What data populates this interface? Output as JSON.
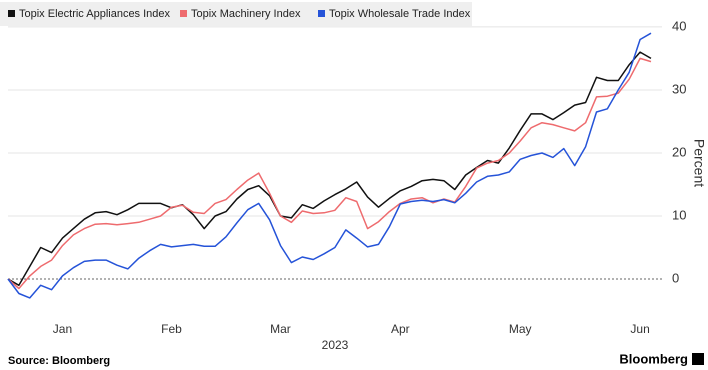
{
  "chart_data": {
    "type": "line",
    "categories": [
      null,
      null,
      null,
      null,
      null,
      "Jan",
      null,
      null,
      null,
      null,
      null,
      null,
      null,
      null,
      null,
      "Feb",
      null,
      null,
      null,
      null,
      null,
      null,
      null,
      null,
      null,
      "Mar",
      null,
      null,
      null,
      null,
      null,
      null,
      null,
      null,
      null,
      null,
      "Apr",
      null,
      null,
      null,
      null,
      null,
      null,
      null,
      null,
      null,
      null,
      "May",
      null,
      null,
      null,
      null,
      null,
      null,
      null,
      null,
      null,
      null,
      "Jun",
      null
    ],
    "xlabel": "2023",
    "ylabel": "Percent",
    "ylim": [
      -6.5,
      43
    ],
    "yticks": [
      0,
      10,
      20,
      30,
      40
    ],
    "grid": true,
    "legend": "top-left",
    "source": "Source: Bloomberg",
    "brand": "Bloomberg",
    "series": [
      {
        "name": "Topix Electric Appliances Index",
        "color": "#111111",
        "values": [
          0,
          -1,
          2,
          5,
          4.2,
          6.5,
          8,
          9.5,
          10.5,
          10.7,
          10.2,
          11,
          12,
          12,
          12,
          11.3,
          11.8,
          10.2,
          8,
          10,
          10.7,
          12.7,
          14.2,
          14.8,
          13.2,
          10,
          9.7,
          11.8,
          11.2,
          12.4,
          13.4,
          14.3,
          15.4,
          13,
          11.4,
          12.8,
          14,
          14.7,
          15.6,
          15.8,
          15.6,
          14.2,
          16.5,
          17.7,
          18.8,
          18.4,
          20.8,
          23.6,
          26.2,
          26.2,
          25.3,
          26.4,
          27.6,
          28,
          32,
          31.5,
          31.5,
          34,
          36,
          35
        ]
      },
      {
        "name": "Topix Machinery Index",
        "color": "#ee6b6e",
        "values": [
          0,
          -1.5,
          0.5,
          2,
          3,
          5.3,
          7,
          8,
          8.7,
          8.8,
          8.6,
          8.8,
          9,
          9.5,
          10,
          11.4,
          11.7,
          10.6,
          10.4,
          12,
          12.6,
          14.2,
          15.7,
          16.8,
          13.6,
          10,
          9,
          10.8,
          10.4,
          10.5,
          10.9,
          12.9,
          12.3,
          8,
          9.1,
          10.7,
          12,
          12.7,
          12.9,
          12.1,
          12.7,
          12.2,
          14.7,
          17.6,
          18.4,
          18.8,
          20,
          21.9,
          24,
          24.8,
          24.5,
          24,
          23.5,
          24.8,
          28.9,
          29,
          29.5,
          31.7,
          35,
          34.5
        ]
      },
      {
        "name": "Topix Wholesale Trade Index",
        "color": "#2553d8",
        "values": [
          0,
          -2.3,
          -3,
          -1,
          -1.7,
          0.5,
          1.8,
          2.8,
          3,
          3,
          2.2,
          1.6,
          3.3,
          4.5,
          5.5,
          5.1,
          5.3,
          5.5,
          5.2,
          5.2,
          6.7,
          8.9,
          11,
          12,
          9.4,
          5.3,
          2.6,
          3.5,
          3.1,
          4,
          5,
          7.8,
          6.5,
          5.1,
          5.5,
          8.3,
          11.9,
          12.3,
          12.5,
          12.3,
          12.6,
          12.1,
          13.6,
          15.4,
          16.3,
          16.5,
          17,
          19,
          19.6,
          20,
          19.3,
          20.7,
          18,
          21,
          26.5,
          27,
          30,
          32.8,
          38,
          39
        ]
      }
    ]
  }
}
